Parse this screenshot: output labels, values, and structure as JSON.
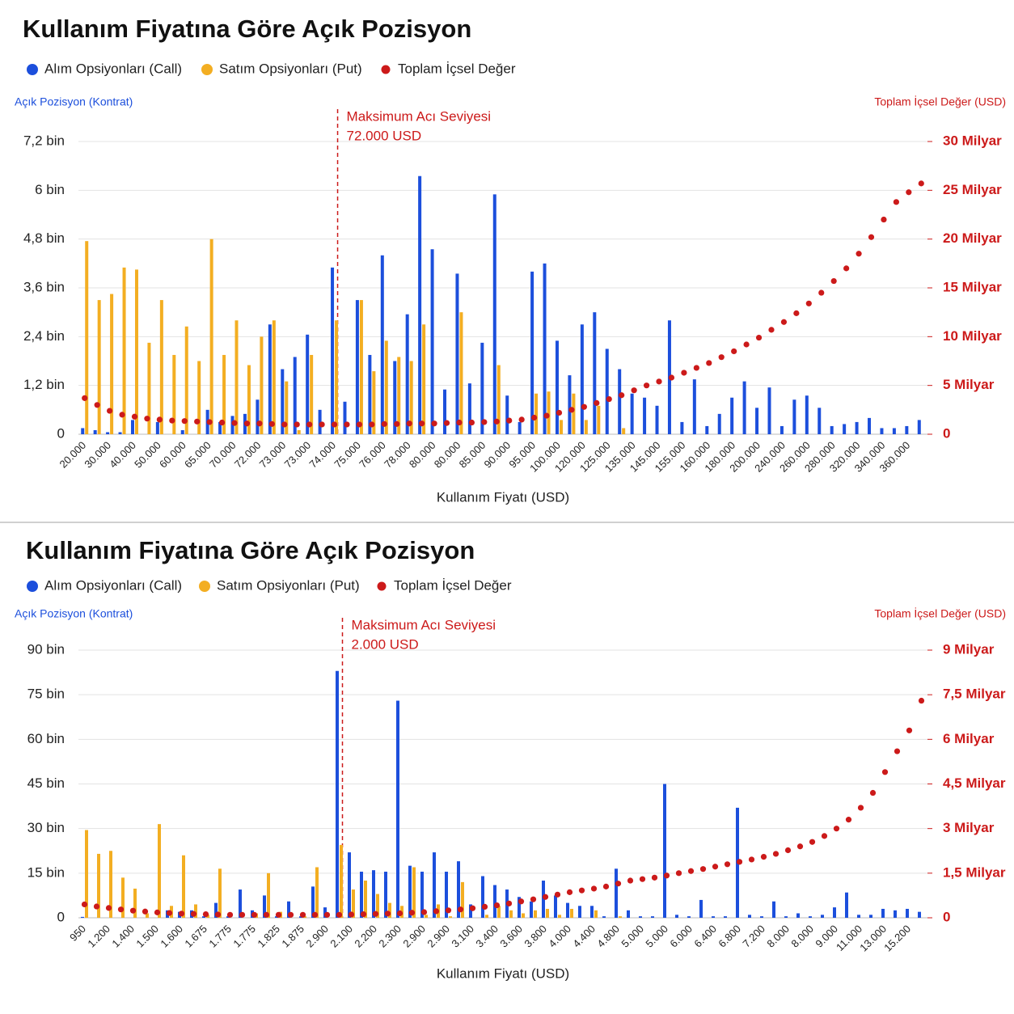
{
  "chart_data": [
    {
      "type": "bar",
      "title": "Kullanım Fiyatına Göre Açık Pozisyon",
      "y_label": "Açık Pozisyon (Kontrat)",
      "y2_label": "Toplam İçsel Değer (USD)",
      "x_label": "Kullanım Fiyatı (USD)",
      "annotation": [
        "Maksimum Acı Seviyesi",
        "72.000 USD"
      ],
      "categories": [
        "20.000",
        null,
        "30.000",
        null,
        "40.000",
        null,
        "50.000",
        null,
        "60.000",
        null,
        "65.000",
        null,
        "70.000",
        null,
        "72.000",
        null,
        "73.000",
        null,
        "73.000",
        null,
        "74.000",
        null,
        "75.000",
        null,
        "76.000",
        null,
        "78.000",
        null,
        "80.000",
        null,
        "80.000",
        null,
        "85.000",
        null,
        "90.000",
        null,
        "95.000",
        null,
        "100.000",
        null,
        "120.000",
        null,
        "125.000",
        null,
        "135.000",
        null,
        "145.000",
        null,
        "155.000",
        null,
        "160.000",
        null,
        "180.000",
        null,
        "200.000",
        null,
        "240.000",
        null,
        "260.000",
        null,
        "280.000",
        null,
        "320.000",
        null,
        "340.000",
        null,
        "360.000",
        null
      ],
      "ylim": [
        0,
        7200
      ],
      "yticks": [
        0,
        {
          "value": 1200,
          "label": "1,2 bin"
        },
        {
          "value": 2400,
          "label": "2,4 bin"
        },
        {
          "value": 3600,
          "label": "3,6 bin"
        },
        {
          "value": 4800,
          "label": "4,8 bin"
        },
        {
          "value": 6000,
          "label": "6 bin"
        },
        {
          "value": 7200,
          "label": "7,2 bin"
        }
      ],
      "y2lim": [
        0,
        30000000000.0
      ],
      "y2ticks": [
        0,
        {
          "value": 5000000000.0,
          "label": "5 Milyar"
        },
        {
          "value": 10000000000.0,
          "label": "10 Milyar"
        },
        {
          "value": 15000000000.0,
          "label": "15 Milyar"
        },
        {
          "value": 20000000000.0,
          "label": "20 Milyar"
        },
        {
          "value": 25000000000.0,
          "label": "25 Milyar"
        },
        {
          "value": 30000000000.0,
          "label": "30 Milyar"
        }
      ],
      "grid": true,
      "series": [
        {
          "name": "Alım Opsiyonları (Call)",
          "color": "#1c4fdc",
          "type": "bar",
          "values": [
            150,
            100,
            50,
            50,
            350,
            0,
            300,
            0,
            100,
            0,
            600,
            300,
            450,
            500,
            850,
            2700,
            1600,
            1900,
            2450,
            600,
            4100,
            800,
            3300,
            1950,
            4400,
            1800,
            2950,
            6350,
            4550,
            1100,
            3950,
            1250,
            2250,
            5900,
            950,
            300,
            4000,
            4200,
            2300,
            1450,
            2700,
            3000,
            2100,
            1600,
            1000,
            900,
            700,
            2800,
            300,
            1350,
            200,
            500,
            900,
            1300,
            650,
            1150,
            200,
            850,
            950,
            650,
            200,
            250,
            300,
            400,
            150,
            150,
            200,
            350
          ]
        },
        {
          "name": "Satım Opsiyonları (Put)",
          "color": "#f3ae22",
          "type": "bar",
          "values": [
            4750,
            3300,
            3450,
            4100,
            4050,
            2250,
            3300,
            1950,
            2650,
            1800,
            4800,
            1950,
            2800,
            1700,
            2400,
            2800,
            1300,
            100,
            1950,
            0,
            2800,
            0,
            3300,
            1550,
            2300,
            1900,
            1800,
            2700,
            0,
            0,
            3000,
            0,
            0,
            1700,
            0,
            0,
            1000,
            1050,
            350,
            1000,
            350,
            700,
            0,
            150,
            0,
            0,
            0,
            0,
            0,
            0,
            0,
            0,
            0,
            0,
            0,
            0,
            0,
            0,
            0,
            0,
            0,
            0,
            0,
            0,
            0,
            0,
            0,
            0
          ]
        },
        {
          "name": "Toplam İçsel Değer",
          "color": "#cc1a1a",
          "type": "scatter",
          "axis": "y2",
          "values": [
            3700000000.0,
            3000000000.0,
            2400000000.0,
            2000000000.0,
            1800000000.0,
            1600000000.0,
            1500000000.0,
            1400000000.0,
            1350000000.0,
            1300000000.0,
            1250000000.0,
            1200000000.0,
            1150000000.0,
            1100000000.0,
            1100000000.0,
            1050000000.0,
            1000000000.0,
            1000000000.0,
            1000000000.0,
            1000000000.0,
            1000000000.0,
            1000000000.0,
            1000000000.0,
            1000000000.0,
            1050000000.0,
            1050000000.0,
            1100000000.0,
            1100000000.0,
            1100000000.0,
            1150000000.0,
            1200000000.0,
            1200000000.0,
            1250000000.0,
            1300000000.0,
            1400000000.0,
            1500000000.0,
            1700000000.0,
            1900000000.0,
            2200000000.0,
            2500000000.0,
            2800000000.0,
            3200000000.0,
            3600000000.0,
            4000000000.0,
            4500000000.0,
            5000000000.0,
            5400000000.0,
            5800000000.0,
            6300000000.0,
            6800000000.0,
            7300000000.0,
            7900000000.0,
            8500000000.0,
            9200000000.0,
            9900000000.0,
            10700000000.0,
            11500000000.0,
            12400000000.0,
            13400000000.0,
            14500000000.0,
            15700000000.0,
            17000000000.0,
            18500000000.0,
            20200000000.0,
            22000000000.0,
            23800000000.0,
            24800000000.0,
            25700000000.0
          ]
        }
      ]
    },
    {
      "type": "bar",
      "title": "Kullanım Fiyatına Göre Açık Pozisyon",
      "y_label": "Açık Pozisyon (Kontrat)",
      "y2_label": "Toplam İçsel Değer (USD)",
      "x_label": "Kullanım Fiyatı (USD)",
      "annotation": [
        "Maksimum Acı Seviyesi",
        "2.000 USD"
      ],
      "categories": [
        "950",
        null,
        "1.200",
        null,
        "1.400",
        null,
        "1.500",
        null,
        "1.600",
        null,
        "1.675",
        null,
        "1.775",
        null,
        "1.775",
        null,
        "1.825",
        null,
        "1.875",
        null,
        "2.900",
        null,
        "2.100",
        null,
        "2.200",
        null,
        "2.300",
        null,
        "2.900",
        null,
        "2.900",
        null,
        "3.100",
        null,
        "3.400",
        null,
        "3.600",
        null,
        "3.800",
        null,
        "4.000",
        null,
        "4.400",
        null,
        "4.800",
        null,
        "5.000",
        null,
        "5.000",
        null,
        "6.000",
        null,
        "6.400",
        null,
        "6.800",
        null,
        "7.200",
        null,
        "8.000",
        null,
        "8.000",
        null,
        "9.000",
        null,
        "11.000",
        null,
        "13.000",
        null,
        "15.200",
        null
      ],
      "ylim": [
        0,
        90000
      ],
      "yticks": [
        0,
        {
          "value": 15000,
          "label": "15 bin"
        },
        {
          "value": 30000,
          "label": "30 bin"
        },
        {
          "value": 45000,
          "label": "45 bin"
        },
        {
          "value": 60000,
          "label": "60 bin"
        },
        {
          "value": 75000,
          "label": "75 bin"
        },
        {
          "value": 90000,
          "label": "90 bin"
        }
      ],
      "y2lim": [
        0,
        9000000000.0
      ],
      "y2ticks": [
        0,
        {
          "value": 1500000000.0,
          "label": "1,5 Milyar"
        },
        {
          "value": 3000000000.0,
          "label": "3 Milyar"
        },
        {
          "value": 4500000000.0,
          "label": "4,5 Milyar"
        },
        {
          "value": 6000000000.0,
          "label": "6 Milyar"
        },
        {
          "value": 7500000000.0,
          "label": "7,5 Milyar"
        },
        {
          "value": 9000000000.0,
          "label": "9 Milyar"
        }
      ],
      "grid": true,
      "series": [
        {
          "name": "Alım Opsiyonları (Call)",
          "color": "#1c4fdc",
          "type": "bar",
          "values": [
            300,
            0,
            0,
            0,
            0,
            0,
            0,
            2500,
            2000,
            2500,
            500,
            5000,
            500,
            9500,
            2500,
            7500,
            500,
            5500,
            500,
            10500,
            3500,
            83000,
            22000,
            15500,
            16000,
            15500,
            73000,
            17500,
            15500,
            22000,
            15500,
            19000,
            4500,
            14000,
            11000,
            9500,
            7000,
            5500,
            12500,
            7500,
            5000,
            4000,
            4000,
            500,
            16500,
            2500,
            500,
            500,
            45000,
            1000,
            500,
            6000,
            500,
            500,
            37000,
            1000,
            500,
            5500,
            500,
            1500,
            500,
            1000,
            3500,
            8500,
            1000,
            1000,
            3000,
            2500,
            3000,
            2000
          ]
        },
        {
          "name": "Satım Opsiyonları (Put)",
          "color": "#f3ae22",
          "type": "bar",
          "values": [
            29500,
            21500,
            22500,
            13500,
            9800,
            1500,
            31500,
            4000,
            21000,
            4500,
            1000,
            16500,
            0,
            0,
            1500,
            15000,
            2000,
            0,
            500,
            17000,
            0,
            24500,
            9500,
            12500,
            8000,
            5000,
            4000,
            17000,
            1000,
            4500,
            500,
            12000,
            0,
            1000,
            4000,
            2500,
            1500,
            2500,
            3000,
            1000,
            3000,
            0,
            2500,
            0,
            500,
            0,
            0,
            0,
            0,
            0,
            0,
            0,
            0,
            0,
            0,
            0,
            0,
            0,
            0,
            0,
            0,
            0,
            0,
            0,
            0,
            0,
            0,
            0,
            0,
            0
          ]
        },
        {
          "name": "Toplam İçsel Değer",
          "color": "#cc1a1a",
          "type": "scatter",
          "axis": "y2",
          "values": [
            450000000.0,
            380000000.0,
            330000000.0,
            280000000.0,
            240000000.0,
            210000000.0,
            180000000.0,
            160000000.0,
            140000000.0,
            130000000.0,
            120000000.0,
            110000000.0,
            100000000.0,
            100000000.0,
            100000000.0,
            100000000.0,
            100000000.0,
            100000000.0,
            100000000.0,
            100000000.0,
            100000000.0,
            100000000.0,
            110000000.0,
            120000000.0,
            130000000.0,
            140000000.0,
            150000000.0,
            170000000.0,
            190000000.0,
            220000000.0,
            250000000.0,
            280000000.0,
            320000000.0,
            370000000.0,
            420000000.0,
            480000000.0,
            550000000.0,
            620000000.0,
            700000000.0,
            780000000.0,
            860000000.0,
            920000000.0,
            980000000.0,
            1050000000.0,
            1150000000.0,
            1250000000.0,
            1300000000.0,
            1350000000.0,
            1420000000.0,
            1500000000.0,
            1570000000.0,
            1640000000.0,
            1720000000.0,
            1800000000.0,
            1880000000.0,
            1960000000.0,
            2050000000.0,
            2150000000.0,
            2270000000.0,
            2400000000.0,
            2550000000.0,
            2750000000.0,
            3000000000.0,
            3300000000.0,
            3700000000.0,
            4200000000.0,
            4900000000.0,
            5600000000.0,
            6300000000.0,
            7300000000.0
          ]
        }
      ]
    }
  ]
}
